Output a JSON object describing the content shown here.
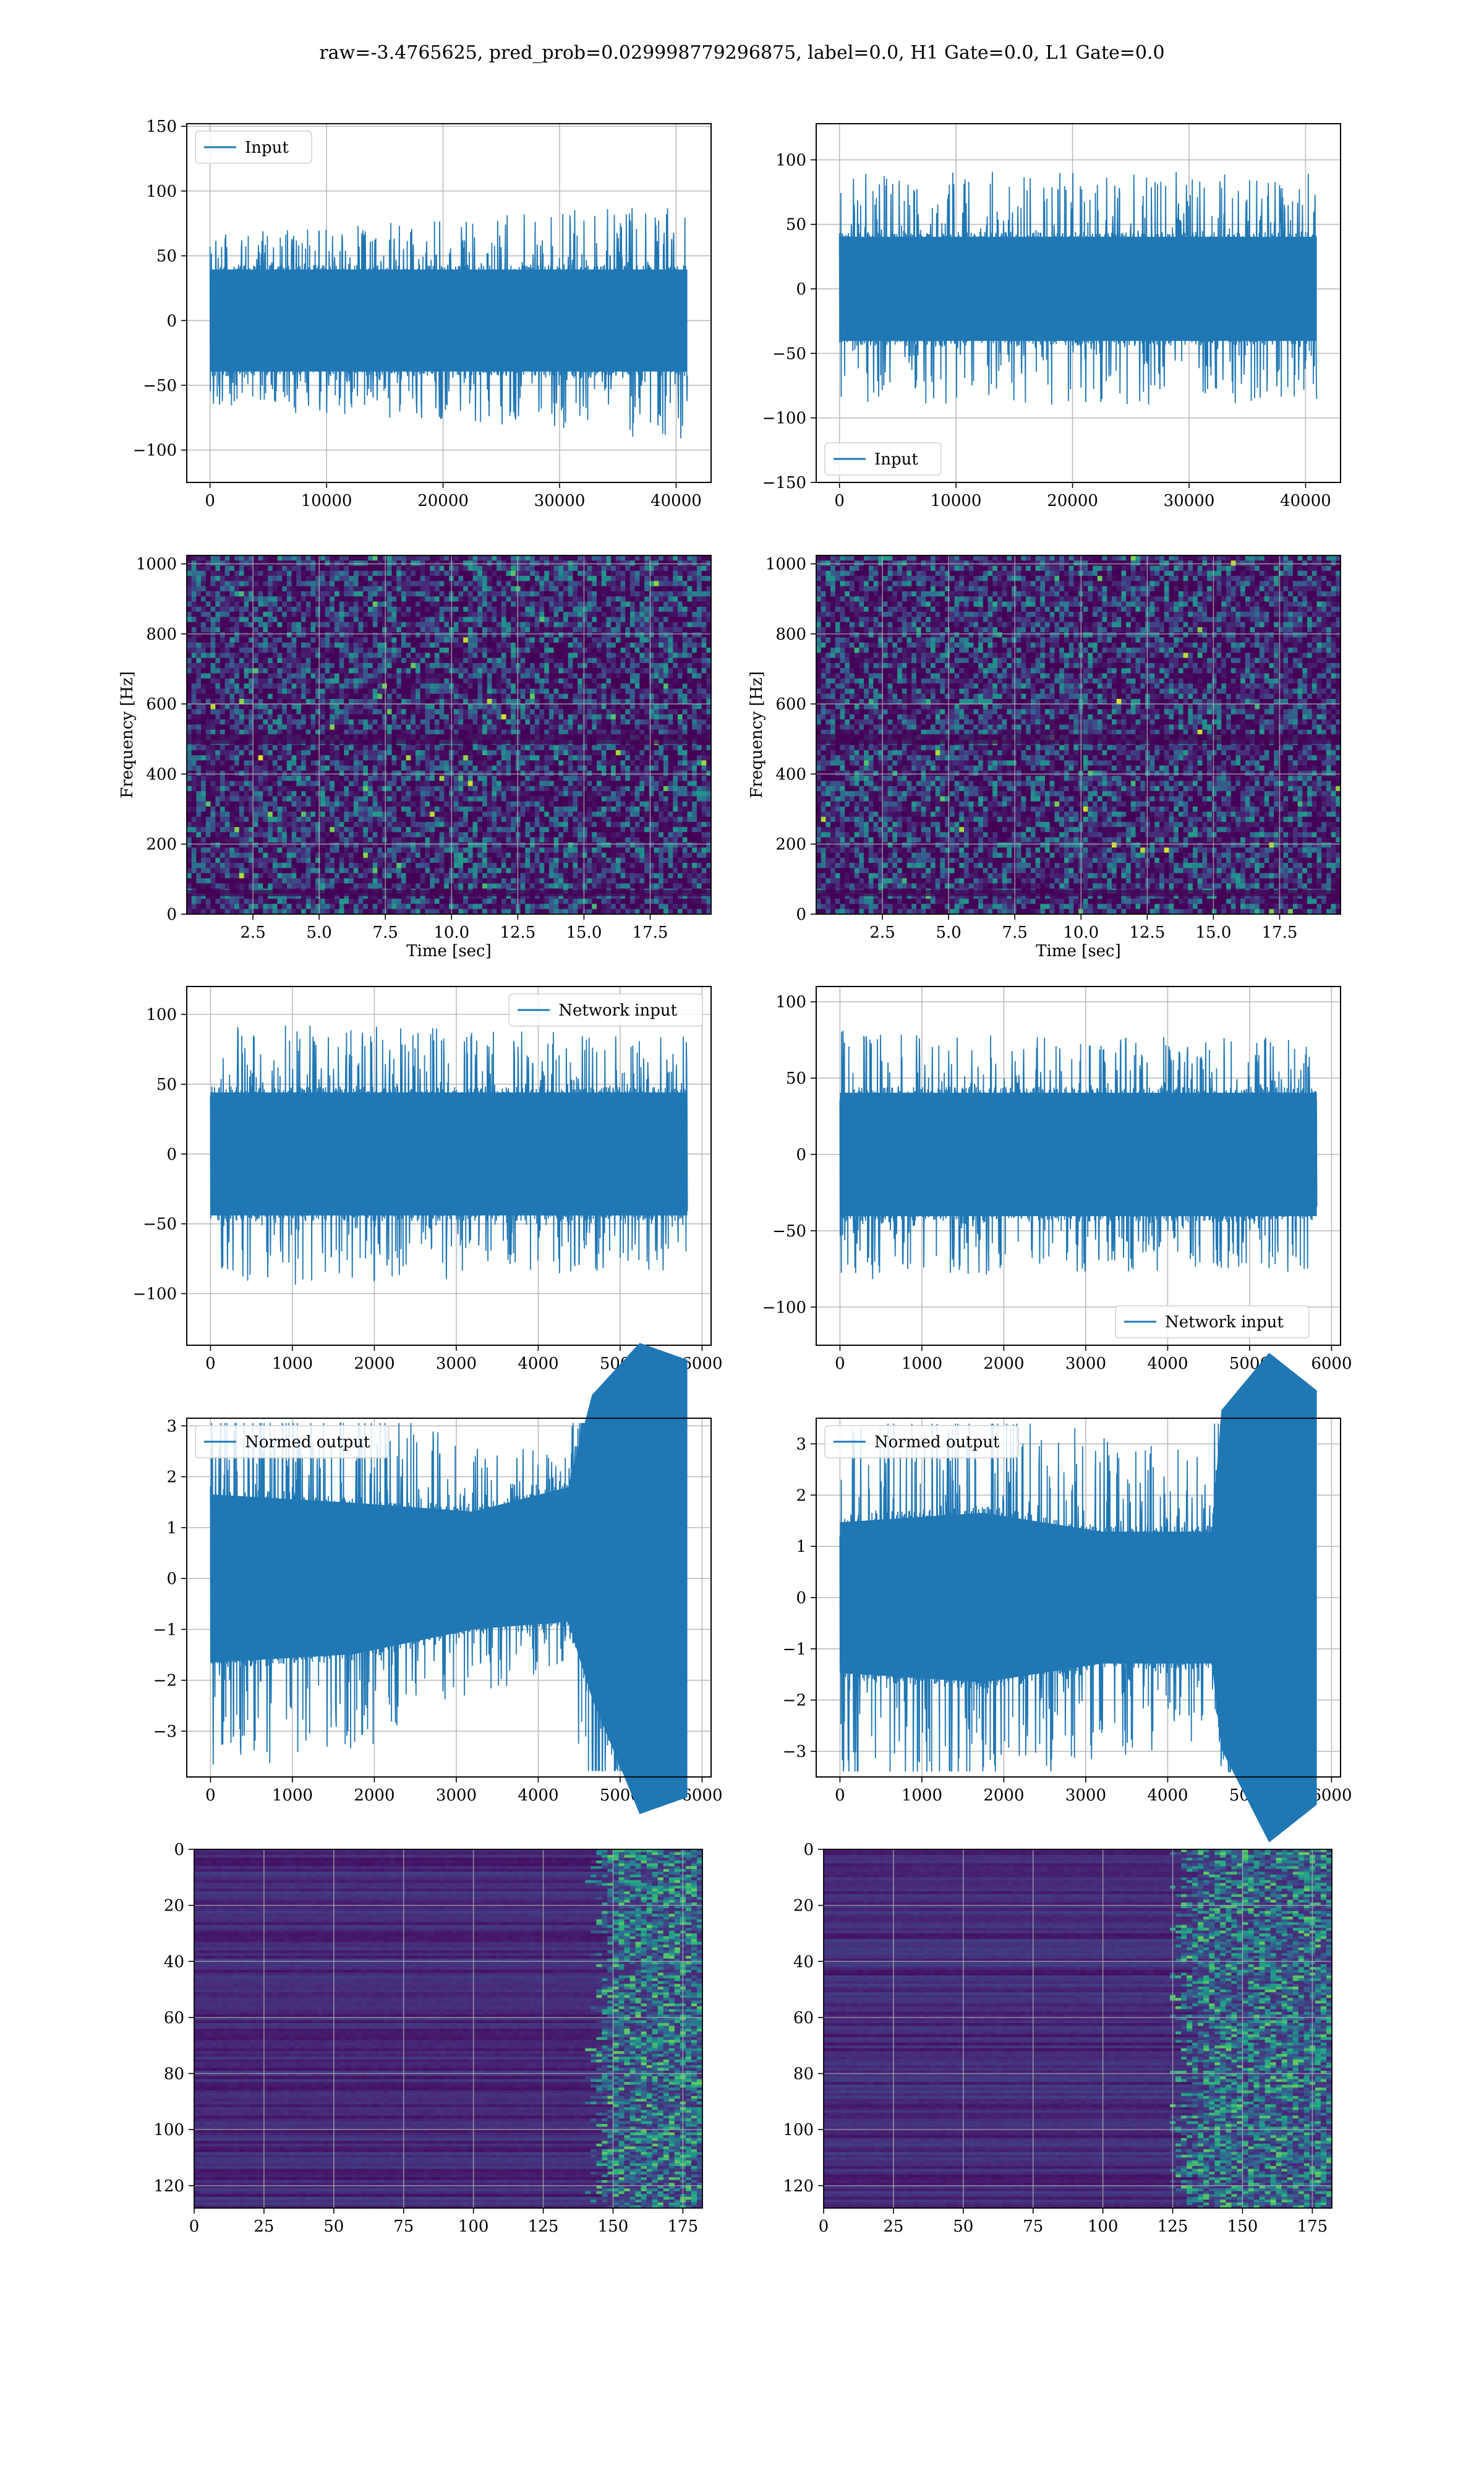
{
  "suptitle": "raw=-3.4765625, pred_prob=0.029998779296875, label=0.0, H1 Gate=0.0, L1 Gate=0.0",
  "colors": {
    "line": "#1f77b4",
    "grid": "#b0b0b0",
    "viridis_low": "#440154",
    "viridis_mid": "#21918c",
    "viridis_high": "#fde725"
  },
  "chart_data": [
    {
      "id": "r1c1",
      "type": "line",
      "title": "",
      "xlabel": "",
      "ylabel": "",
      "xlim": [
        -2000,
        43000
      ],
      "ylim": [
        -125,
        152
      ],
      "xticks": [
        0,
        10000,
        20000,
        30000,
        40000
      ],
      "yticks": [
        -100,
        -50,
        0,
        50,
        100,
        150
      ],
      "legend": "upper-left",
      "series": [
        {
          "name": "Input",
          "x_range": [
            0,
            40960
          ],
          "envelope": [
            [
              0,
              0,
              0.3,
              0.55
            ],
            [
              0.5,
              0,
              0.3,
              0.62
            ],
            [
              1,
              0,
              0.3,
              0.75
            ]
          ]
        }
      ]
    },
    {
      "id": "r1c2",
      "type": "line",
      "title": "",
      "xlabel": "",
      "ylabel": "",
      "xlim": [
        -2000,
        43000
      ],
      "ylim": [
        -150,
        128
      ],
      "xticks": [
        0,
        10000,
        20000,
        30000,
        40000
      ],
      "yticks": [
        -150,
        -100,
        -50,
        0,
        50,
        100
      ],
      "legend": "lower-left",
      "series": [
        {
          "name": "Input",
          "x_range": [
            0,
            40960
          ],
          "envelope": [
            [
              0,
              0,
              0.3,
              0.7
            ],
            [
              0.5,
              0,
              0.3,
              0.72
            ],
            [
              1,
              0,
              0.3,
              0.7
            ]
          ]
        }
      ]
    },
    {
      "id": "r2c1",
      "type": "heatmap",
      "title": "",
      "xlabel": "Time [sec]",
      "ylabel": "Frequency [Hz]",
      "xlim": [
        0,
        19.8
      ],
      "ylim": [
        0,
        1024
      ],
      "xticks": [
        2.5,
        5.0,
        7.5,
        10.0,
        12.5,
        15.0,
        17.5
      ],
      "xticklabels": [
        "2.5",
        "5.0",
        "7.5",
        "10.0",
        "12.5",
        "15.0",
        "17.5"
      ],
      "yticks": [
        0,
        200,
        400,
        600,
        800,
        1000
      ],
      "colormap": "viridis",
      "pattern": "noise"
    },
    {
      "id": "r2c2",
      "type": "heatmap",
      "title": "",
      "xlabel": "Time [sec]",
      "ylabel": "Frequency [Hz]",
      "xlim": [
        0,
        19.8
      ],
      "ylim": [
        0,
        1024
      ],
      "xticks": [
        2.5,
        5.0,
        7.5,
        10.0,
        12.5,
        15.0,
        17.5
      ],
      "xticklabels": [
        "2.5",
        "5.0",
        "7.5",
        "10.0",
        "12.5",
        "15.0",
        "17.5"
      ],
      "yticks": [
        0,
        200,
        400,
        600,
        800,
        1000
      ],
      "colormap": "viridis",
      "pattern": "noise"
    },
    {
      "id": "r3c1",
      "type": "line",
      "title": "",
      "xlabel": "",
      "ylabel": "",
      "xlim": [
        -290,
        6110
      ],
      "ylim": [
        -137,
        120
      ],
      "xticks": [
        0,
        1000,
        2000,
        3000,
        4000,
        5000,
        6000
      ],
      "yticks": [
        -100,
        -50,
        0,
        50,
        100
      ],
      "legend": "upper-right",
      "series": [
        {
          "name": "Network input",
          "x_range": [
            0,
            5820
          ],
          "envelope": [
            [
              0,
              0,
              0.35,
              0.8
            ],
            [
              0.5,
              0,
              0.35,
              0.75
            ],
            [
              1,
              0,
              0.35,
              0.7
            ]
          ]
        }
      ]
    },
    {
      "id": "r3c2",
      "type": "line",
      "title": "",
      "xlabel": "",
      "ylabel": "",
      "xlim": [
        -290,
        6110
      ],
      "ylim": [
        -125,
        110
      ],
      "xticks": [
        0,
        1000,
        2000,
        3000,
        4000,
        5000,
        6000
      ],
      "yticks": [
        -100,
        -50,
        0,
        50,
        100
      ],
      "legend": "lower-center",
      "series": [
        {
          "name": "Network input",
          "x_range": [
            0,
            5820
          ],
          "envelope": [
            [
              0,
              0,
              0.35,
              0.75
            ],
            [
              0.5,
              0,
              0.35,
              0.7
            ],
            [
              1,
              0,
              0.35,
              0.7
            ]
          ]
        }
      ]
    },
    {
      "id": "r4c1",
      "type": "line",
      "title": "",
      "xlabel": "",
      "ylabel": "",
      "xlim": [
        -290,
        6110
      ],
      "ylim": [
        -3.9,
        3.15
      ],
      "xticks": [
        0,
        1000,
        2000,
        3000,
        4000,
        5000,
        6000
      ],
      "yticks": [
        -3,
        -2,
        -1,
        0,
        1,
        2,
        3
      ],
      "legend": "upper-left",
      "series": [
        {
          "name": "Normed output",
          "x_range": [
            0,
            5820
          ],
          "envelope": [
            [
              0,
              0,
              0.5,
              1.2
            ],
            [
              0.3,
              0,
              0.45,
              1.1
            ],
            [
              0.55,
              0.05,
              0.35,
              0.8
            ],
            [
              0.75,
              0.15,
              0.4,
              0.7
            ],
            [
              0.8,
              0.2,
              0.9,
              2.0
            ],
            [
              0.9,
              0,
              1.4,
              3.0
            ],
            [
              1,
              0,
              1.3,
              2.5
            ]
          ]
        }
      ]
    },
    {
      "id": "r4c2",
      "type": "line",
      "title": "",
      "xlabel": "",
      "ylabel": "",
      "xlim": [
        -290,
        6110
      ],
      "ylim": [
        -3.5,
        3.5
      ],
      "xticks": [
        0,
        1000,
        2000,
        3000,
        4000,
        5000,
        6000
      ],
      "yticks": [
        -3,
        -2,
        -1,
        0,
        1,
        2,
        3
      ],
      "legend": "upper-left",
      "series": [
        {
          "name": "Normed output",
          "x_range": [
            0,
            5820
          ],
          "envelope": [
            [
              0,
              0,
              0.4,
              1.1
            ],
            [
              0.3,
              0,
              0.45,
              1.1
            ],
            [
              0.55,
              0,
              0.35,
              0.9
            ],
            [
              0.78,
              0,
              0.35,
              0.8
            ],
            [
              0.8,
              0.1,
              0.9,
              2.2
            ],
            [
              0.9,
              0,
              1.3,
              3.0
            ],
            [
              1,
              0,
              1.1,
              2.0
            ]
          ]
        }
      ]
    },
    {
      "id": "r5c1",
      "type": "heatmap",
      "title": "",
      "xlabel": "",
      "ylabel": "",
      "xlim": [
        0,
        182
      ],
      "ylim": [
        128,
        0
      ],
      "xticks": [
        0,
        25,
        50,
        75,
        100,
        125,
        150,
        175
      ],
      "xticklabels": [
        "0",
        "25",
        "50",
        "75",
        "100",
        "125",
        "150",
        "175"
      ],
      "yticks": [
        0,
        20,
        40,
        60,
        80,
        100,
        120
      ],
      "colormap": "viridis",
      "pattern": "rows-onset",
      "onset_col": 145
    },
    {
      "id": "r5c2",
      "type": "heatmap",
      "title": "",
      "xlabel": "",
      "ylabel": "",
      "xlim": [
        0,
        182
      ],
      "ylim": [
        128,
        0
      ],
      "xticks": [
        0,
        25,
        50,
        75,
        100,
        125,
        150,
        175
      ],
      "xticklabels": [
        "0",
        "25",
        "50",
        "75",
        "100",
        "125",
        "150",
        "175"
      ],
      "yticks": [
        0,
        20,
        40,
        60,
        80,
        100,
        120
      ],
      "colormap": "viridis",
      "pattern": "rows-onset",
      "onset_col": 128
    }
  ]
}
